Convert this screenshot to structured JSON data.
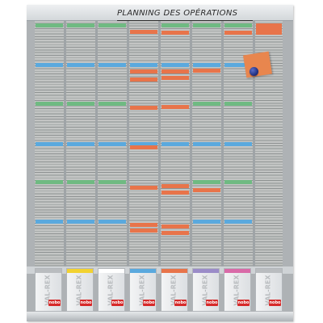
{
  "board": {
    "title": "PLANNING DES OPÉRATIONS",
    "card_colors": {
      "green": "#6fba82",
      "blue": "#5aa9de",
      "orange": "#e8744a",
      "magnet": "#2a3a9a"
    },
    "boxes": [
      {
        "text": "VAL-REX",
        "logo": "nobo",
        "color": "#b9bcbf"
      },
      {
        "text": "VAL-REX",
        "logo": "nobo",
        "color": "#f2d230"
      },
      {
        "text": "VAL-REX",
        "logo": "nobo",
        "color": "#ffffff"
      },
      {
        "text": "VAL-REX",
        "logo": "nobo",
        "color": "#5aa9de"
      },
      {
        "text": "VAL-REX",
        "logo": "nobo",
        "color": "#e8744a"
      },
      {
        "text": "VAL-REX",
        "logo": "nobo",
        "color": "#9b8cc8"
      },
      {
        "text": "VAL-REX",
        "logo": "nobo",
        "color": "#d96aa8"
      },
      {
        "text": "VAL-REX",
        "logo": "nobo",
        "color": "#b9bcbf"
      }
    ]
  }
}
